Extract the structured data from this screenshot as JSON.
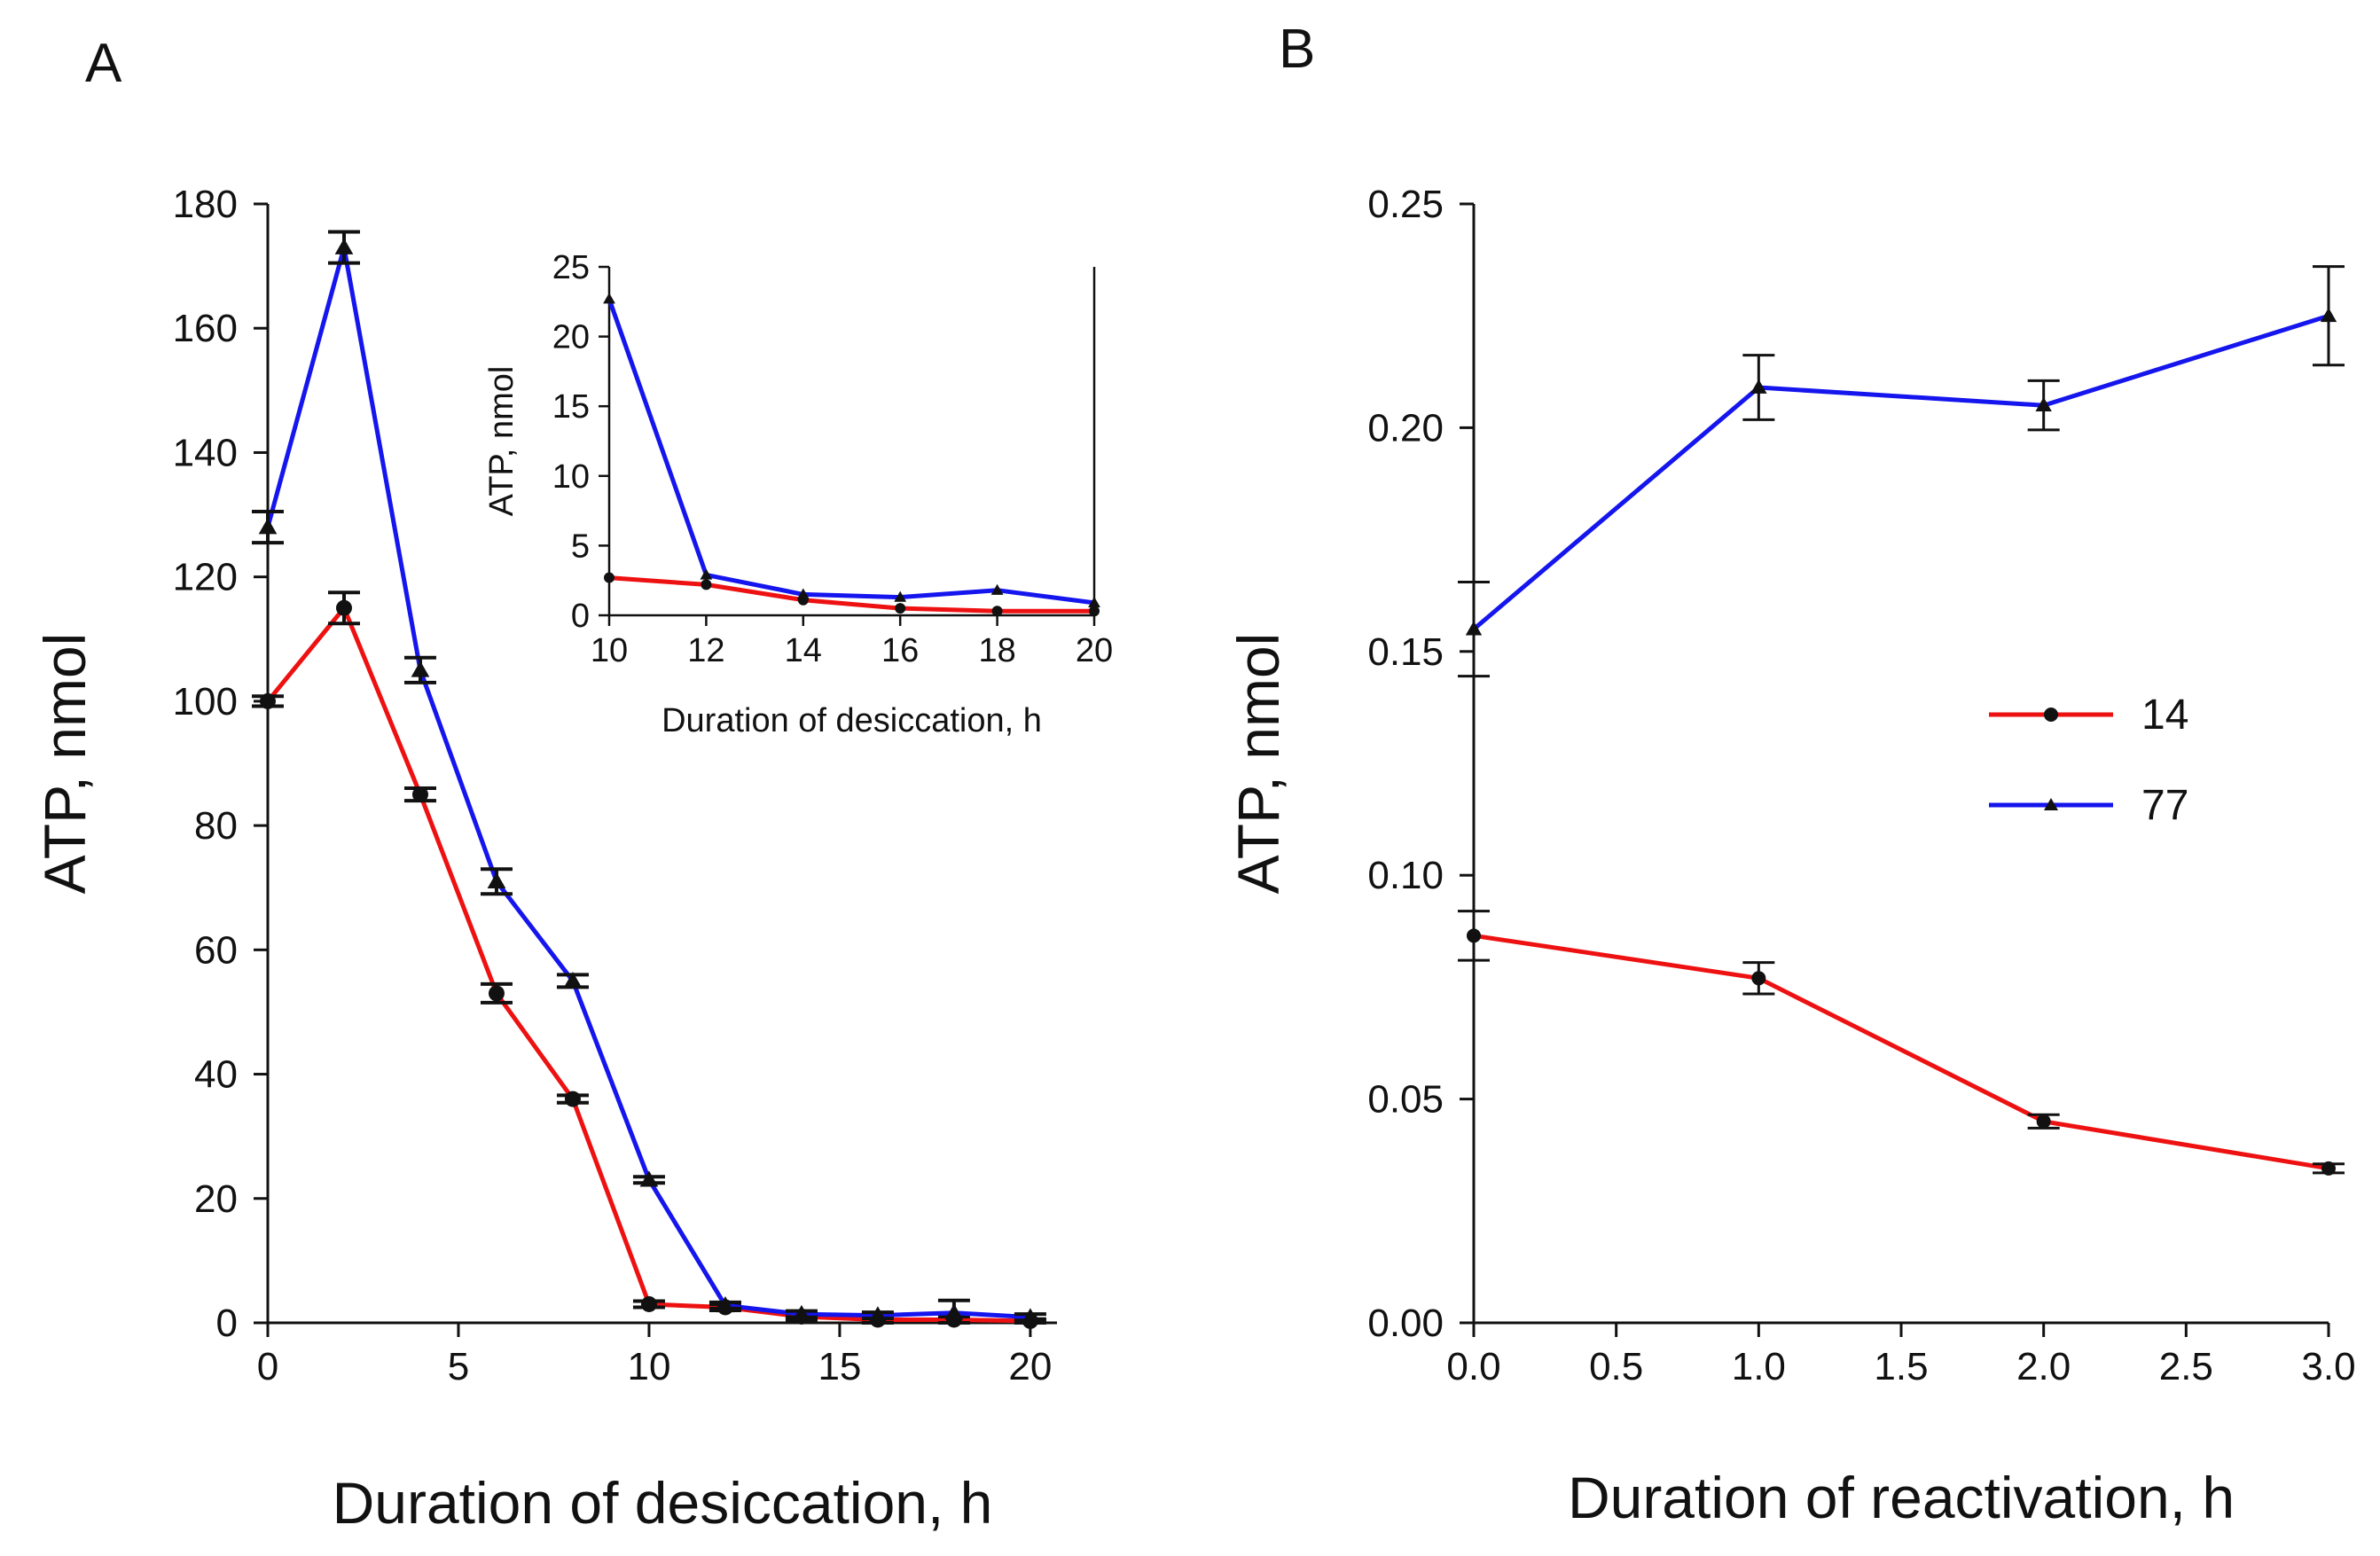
{
  "panels": {
    "a": {
      "letter": "A"
    },
    "b": {
      "letter": "B"
    }
  },
  "colors": {
    "series_14": "#ee1111",
    "series_77": "#1515ee",
    "axis": "#111111"
  },
  "chart_data": [
    {
      "id": "panel-a-main",
      "type": "line",
      "title": "",
      "xlabel": "Duration of desiccation, h",
      "ylabel": "ATP, nmol",
      "xlim": [
        0,
        20.7
      ],
      "ylim": [
        0,
        180
      ],
      "xticks": [
        0,
        5,
        10,
        15,
        20
      ],
      "yticks": [
        0,
        20,
        40,
        60,
        80,
        100,
        120,
        140,
        160,
        180
      ],
      "xtick_labels": [
        "0",
        "5",
        "10",
        "15",
        "20"
      ],
      "ytick_labels": [
        "0",
        "20",
        "40",
        "60",
        "80",
        "100",
        "120",
        "140",
        "160",
        "180"
      ],
      "series": [
        {
          "name": "14",
          "color": "#ee1111",
          "marker": "circle",
          "x": [
            0,
            2,
            4,
            6,
            8,
            10,
            12,
            14,
            16,
            18,
            20
          ],
          "values": [
            100,
            115,
            85,
            53,
            36,
            3,
            2.5,
            1,
            0.5,
            0.5,
            0.3
          ],
          "errors": [
            0.8,
            2.5,
            1.0,
            1.5,
            0.6,
            0.5,
            0.5,
            0.5,
            0.5,
            0.5,
            0.3
          ]
        },
        {
          "name": "77",
          "color": "#1515ee",
          "marker": "triangle",
          "x": [
            0,
            2,
            4,
            6,
            8,
            10,
            12,
            14,
            16,
            18,
            20
          ],
          "values": [
            128,
            173,
            105,
            71,
            55,
            23,
            2.8,
            1.4,
            1.2,
            1.6,
            0.9
          ],
          "errors": [
            2.5,
            2.5,
            2.0,
            2.0,
            1.0,
            0.5,
            0.5,
            0.5,
            0.5,
            2.0,
            0.5
          ]
        }
      ]
    },
    {
      "id": "panel-a-inset",
      "type": "line",
      "title": "",
      "xlabel": "Duration of desiccation, h",
      "ylabel": "ATP, nmol",
      "xlim": [
        10,
        20
      ],
      "ylim": [
        0,
        25
      ],
      "xticks": [
        10,
        12,
        14,
        16,
        18,
        20
      ],
      "yticks": [
        0,
        5,
        10,
        15,
        20,
        25
      ],
      "xtick_labels": [
        "10",
        "12",
        "14",
        "16",
        "18",
        "20"
      ],
      "ytick_labels": [
        "0",
        "5",
        "10",
        "15",
        "20",
        "25"
      ],
      "series": [
        {
          "name": "14",
          "color": "#ee1111",
          "marker": "circle",
          "x": [
            10,
            12,
            14,
            16,
            18,
            20
          ],
          "values": [
            2.7,
            2.2,
            1.1,
            0.5,
            0.3,
            0.3
          ]
        },
        {
          "name": "77",
          "color": "#1515ee",
          "marker": "triangle",
          "x": [
            10,
            12,
            14,
            16,
            18,
            20
          ],
          "values": [
            22.7,
            2.9,
            1.5,
            1.3,
            1.8,
            0.9
          ]
        }
      ]
    },
    {
      "id": "panel-b",
      "type": "line",
      "title": "",
      "xlabel": "Duration of reactivation, h",
      "ylabel": "ATP, nmol",
      "xlim": [
        0,
        3.0
      ],
      "ylim": [
        0,
        0.25
      ],
      "xticks": [
        0,
        0.5,
        1.0,
        1.5,
        2.0,
        2.5,
        3.0
      ],
      "yticks": [
        0,
        0.05,
        0.1,
        0.15,
        0.2,
        0.25
      ],
      "xtick_labels": [
        "0.0",
        "0.5",
        "1.0",
        "1.5",
        "2.0",
        "2.5",
        "3.0"
      ],
      "ytick_labels": [
        "0.00",
        "0.05",
        "0.10",
        "0.15",
        "0.20",
        "0.25"
      ],
      "legend": {
        "position": "center-right",
        "entries": [
          "14",
          "77"
        ]
      },
      "series": [
        {
          "name": "14",
          "color": "#ee1111",
          "marker": "circle",
          "x": [
            0,
            1,
            2,
            3
          ],
          "values": [
            0.0865,
            0.077,
            0.045,
            0.0345
          ],
          "errors": [
            0.0055,
            0.0035,
            0.0015,
            0.001
          ]
        },
        {
          "name": "77",
          "color": "#1515ee",
          "marker": "triangle",
          "x": [
            0,
            1,
            2,
            3
          ],
          "values": [
            0.155,
            0.209,
            0.205,
            0.225
          ],
          "errors": [
            0.0105,
            0.0072,
            0.0055,
            0.011
          ]
        }
      ]
    }
  ]
}
